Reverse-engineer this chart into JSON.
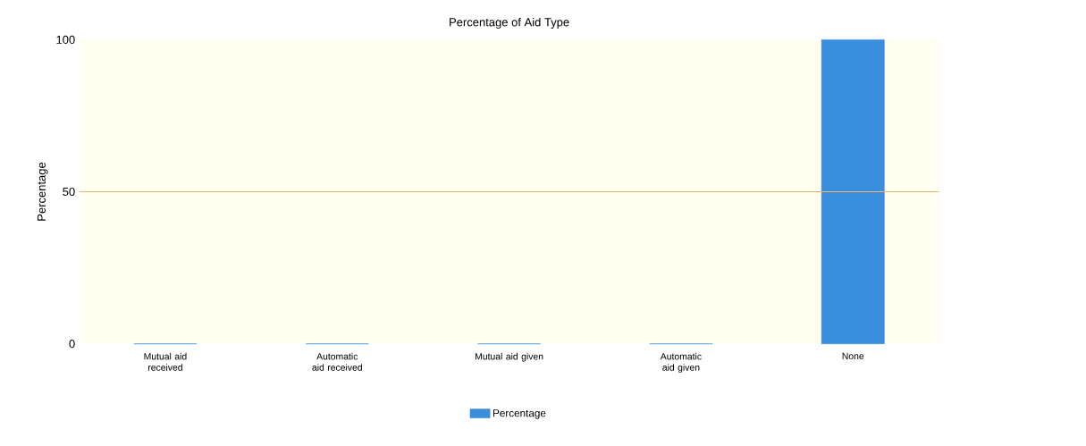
{
  "chart_data": {
    "type": "bar",
    "title": "Percentage of Aid Type",
    "ylabel": "Percentage",
    "categories": [
      "Mutual aid received",
      "Automatic aid received",
      "Mutual aid given",
      "Automatic aid given",
      "None"
    ],
    "series": [
      {
        "name": "Percentage",
        "color": "#3a8fdc",
        "values": [
          0,
          0,
          0,
          0,
          100
        ]
      }
    ],
    "ylim": [
      0,
      100
    ],
    "yticks": [
      0,
      50,
      100
    ],
    "ref_lines": [
      {
        "axis": "y",
        "value": 50,
        "color": "#f0b478"
      }
    ],
    "legend": "bottom"
  }
}
